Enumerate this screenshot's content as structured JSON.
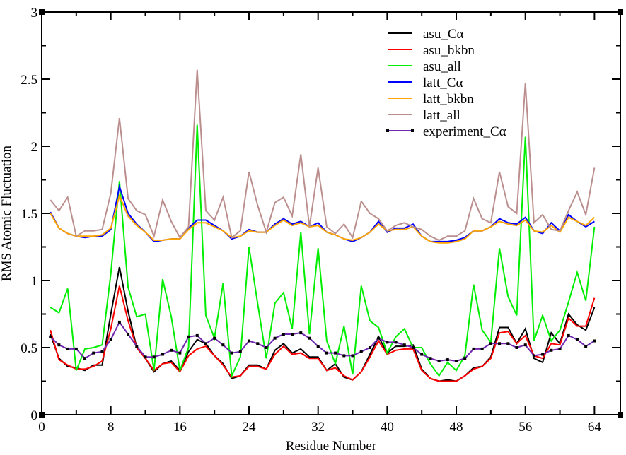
{
  "chart_data": {
    "type": "line",
    "title": "",
    "xlabel": "Residue Number",
    "ylabel": "RMS Atomic Fluctuation",
    "xlim": [
      0,
      67
    ],
    "ylim": [
      0,
      3
    ],
    "xticks": [
      0,
      8,
      16,
      24,
      32,
      40,
      48,
      56,
      64
    ],
    "xtick_labels": [
      "0",
      "8",
      "16",
      "24",
      "32",
      "40",
      "48",
      "56",
      "64"
    ],
    "yticks": [
      0,
      0.5,
      1,
      1.5,
      2,
      2.5,
      3
    ],
    "ytick_labels": [
      "0",
      "0.5",
      "1",
      "1.5",
      "2",
      "2.5",
      "3"
    ],
    "grid": false,
    "legend_position": "top-right",
    "x": [
      1,
      2,
      3,
      4,
      5,
      6,
      7,
      8,
      9,
      10,
      11,
      12,
      13,
      14,
      15,
      16,
      17,
      18,
      19,
      20,
      21,
      22,
      23,
      24,
      25,
      26,
      27,
      28,
      29,
      30,
      31,
      32,
      33,
      34,
      35,
      36,
      37,
      38,
      39,
      40,
      41,
      42,
      43,
      44,
      45,
      46,
      47,
      48,
      49,
      50,
      51,
      52,
      53,
      54,
      55,
      56,
      57,
      58,
      59,
      60,
      61,
      62,
      63,
      64
    ],
    "series": [
      {
        "name": "asu_Cα",
        "color": "#000000",
        "markers": false,
        "values": [
          0.6,
          0.42,
          0.36,
          0.35,
          0.33,
          0.37,
          0.37,
          0.75,
          1.1,
          0.77,
          0.5,
          0.42,
          0.32,
          0.38,
          0.4,
          0.33,
          0.47,
          0.56,
          0.53,
          0.44,
          0.38,
          0.27,
          0.29,
          0.37,
          0.37,
          0.34,
          0.48,
          0.53,
          0.46,
          0.49,
          0.43,
          0.43,
          0.33,
          0.38,
          0.28,
          0.26,
          0.32,
          0.45,
          0.58,
          0.46,
          0.51,
          0.51,
          0.52,
          0.34,
          0.27,
          0.25,
          0.26,
          0.25,
          0.29,
          0.35,
          0.36,
          0.43,
          0.65,
          0.65,
          0.53,
          0.64,
          0.42,
          0.39,
          0.61,
          0.53,
          0.75,
          0.67,
          0.63,
          0.8
        ]
      },
      {
        "name": "asu_bkbn",
        "color": "#ff0000",
        "markers": false,
        "values": [
          0.63,
          0.41,
          0.37,
          0.34,
          0.34,
          0.36,
          0.4,
          0.64,
          0.96,
          0.7,
          0.5,
          0.42,
          0.33,
          0.38,
          0.39,
          0.32,
          0.44,
          0.49,
          0.51,
          0.44,
          0.37,
          0.28,
          0.29,
          0.36,
          0.36,
          0.34,
          0.45,
          0.51,
          0.45,
          0.46,
          0.42,
          0.42,
          0.33,
          0.35,
          0.29,
          0.26,
          0.32,
          0.43,
          0.55,
          0.45,
          0.48,
          0.49,
          0.49,
          0.33,
          0.27,
          0.25,
          0.25,
          0.25,
          0.29,
          0.34,
          0.36,
          0.42,
          0.61,
          0.62,
          0.53,
          0.59,
          0.44,
          0.42,
          0.53,
          0.52,
          0.72,
          0.66,
          0.66,
          0.87
        ]
      },
      {
        "name": "asu_all",
        "color": "#00ee00",
        "markers": false,
        "values": [
          0.8,
          0.76,
          0.94,
          0.33,
          0.49,
          0.5,
          0.52,
          1.05,
          1.74,
          0.95,
          0.73,
          0.75,
          0.33,
          1.01,
          0.73,
          0.33,
          0.5,
          2.16,
          0.74,
          0.57,
          0.98,
          0.29,
          0.43,
          1.25,
          0.83,
          0.42,
          0.83,
          0.91,
          0.64,
          1.36,
          0.6,
          1.24,
          0.55,
          0.38,
          0.66,
          0.3,
          0.96,
          0.7,
          0.65,
          0.46,
          0.58,
          0.64,
          0.5,
          0.5,
          0.38,
          0.29,
          0.39,
          0.33,
          0.44,
          0.97,
          0.63,
          0.54,
          1.24,
          0.88,
          0.74,
          2.07,
          0.55,
          0.74,
          0.55,
          0.63,
          0.84,
          1.06,
          0.85,
          1.4
        ]
      },
      {
        "name": "latt_Cα",
        "color": "#0000ff",
        "markers": false,
        "values": [
          1.51,
          1.39,
          1.35,
          1.33,
          1.32,
          1.33,
          1.33,
          1.38,
          1.7,
          1.5,
          1.42,
          1.36,
          1.29,
          1.3,
          1.31,
          1.31,
          1.39,
          1.45,
          1.45,
          1.41,
          1.37,
          1.31,
          1.33,
          1.38,
          1.36,
          1.36,
          1.42,
          1.46,
          1.42,
          1.44,
          1.4,
          1.43,
          1.36,
          1.34,
          1.31,
          1.29,
          1.32,
          1.36,
          1.44,
          1.36,
          1.39,
          1.39,
          1.42,
          1.33,
          1.29,
          1.29,
          1.29,
          1.3,
          1.32,
          1.37,
          1.37,
          1.4,
          1.46,
          1.43,
          1.42,
          1.47,
          1.37,
          1.35,
          1.43,
          1.37,
          1.49,
          1.44,
          1.4,
          1.44
        ]
      },
      {
        "name": "latt_bkbn",
        "color": "#ffa500",
        "markers": false,
        "values": [
          1.5,
          1.39,
          1.35,
          1.33,
          1.33,
          1.33,
          1.34,
          1.39,
          1.63,
          1.48,
          1.41,
          1.36,
          1.3,
          1.3,
          1.31,
          1.31,
          1.38,
          1.43,
          1.43,
          1.4,
          1.37,
          1.32,
          1.33,
          1.37,
          1.36,
          1.36,
          1.41,
          1.45,
          1.41,
          1.43,
          1.4,
          1.41,
          1.36,
          1.34,
          1.31,
          1.3,
          1.32,
          1.36,
          1.42,
          1.37,
          1.38,
          1.38,
          1.4,
          1.33,
          1.29,
          1.28,
          1.28,
          1.29,
          1.31,
          1.37,
          1.37,
          1.4,
          1.44,
          1.42,
          1.41,
          1.45,
          1.37,
          1.36,
          1.41,
          1.36,
          1.47,
          1.44,
          1.41,
          1.47
        ]
      },
      {
        "name": "latt_all",
        "color": "#bc8f8f",
        "markers": false,
        "values": [
          1.6,
          1.52,
          1.62,
          1.33,
          1.37,
          1.37,
          1.38,
          1.65,
          2.21,
          1.61,
          1.52,
          1.49,
          1.33,
          1.6,
          1.44,
          1.32,
          1.4,
          2.57,
          1.52,
          1.45,
          1.62,
          1.32,
          1.37,
          1.81,
          1.56,
          1.36,
          1.58,
          1.62,
          1.48,
          1.94,
          1.4,
          1.84,
          1.4,
          1.35,
          1.42,
          1.32,
          1.59,
          1.5,
          1.46,
          1.37,
          1.41,
          1.43,
          1.4,
          1.38,
          1.33,
          1.3,
          1.33,
          1.33,
          1.37,
          1.61,
          1.46,
          1.43,
          1.81,
          1.55,
          1.5,
          2.47,
          1.43,
          1.49,
          1.38,
          1.37,
          1.52,
          1.66,
          1.49,
          1.84
        ]
      },
      {
        "name": "experiment_Cα",
        "color": "#7028b0",
        "markers": true,
        "values": [
          0.58,
          0.52,
          0.49,
          0.49,
          0.42,
          0.46,
          0.47,
          0.56,
          0.69,
          0.6,
          0.51,
          0.43,
          0.43,
          0.45,
          0.48,
          0.46,
          0.58,
          0.59,
          0.53,
          0.57,
          0.52,
          0.46,
          0.47,
          0.55,
          0.53,
          0.5,
          0.57,
          0.6,
          0.6,
          0.61,
          0.57,
          0.51,
          0.46,
          0.46,
          0.44,
          0.44,
          0.47,
          0.5,
          0.57,
          0.54,
          0.54,
          0.52,
          0.5,
          0.45,
          0.42,
          0.4,
          0.41,
          0.4,
          0.42,
          0.49,
          0.49,
          0.53,
          0.53,
          0.53,
          0.5,
          0.52,
          0.44,
          0.45,
          0.48,
          0.49,
          0.59,
          0.56,
          0.51,
          0.55
        ]
      }
    ]
  }
}
